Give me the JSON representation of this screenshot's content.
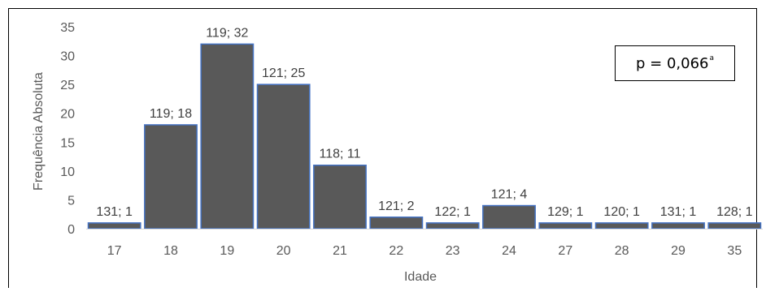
{
  "chart_data": {
    "type": "bar",
    "categories": [
      "17",
      "18",
      "19",
      "20",
      "21",
      "22",
      "23",
      "24",
      "27",
      "28",
      "29",
      "35"
    ],
    "values": [
      1,
      18,
      32,
      25,
      11,
      2,
      1,
      4,
      1,
      1,
      1,
      1
    ],
    "data_labels": [
      "131; 1",
      "119; 18",
      "119; 32",
      "121; 25",
      "118; 11",
      "121; 2",
      "122; 1",
      "121; 4",
      "129; 1",
      "120; 1",
      "131; 1",
      "128; 1"
    ],
    "xlabel": "Idade",
    "ylabel": "Frequência Absoluta",
    "ylim": [
      0,
      35
    ],
    "yticks": [
      0,
      5,
      10,
      15,
      20,
      25,
      30,
      35
    ],
    "grid": false,
    "colors": {
      "bar_fill": "#595959",
      "bar_stroke": "#4472c4"
    }
  },
  "annotation": {
    "text": "p = 0,066",
    "superscript": "a"
  }
}
